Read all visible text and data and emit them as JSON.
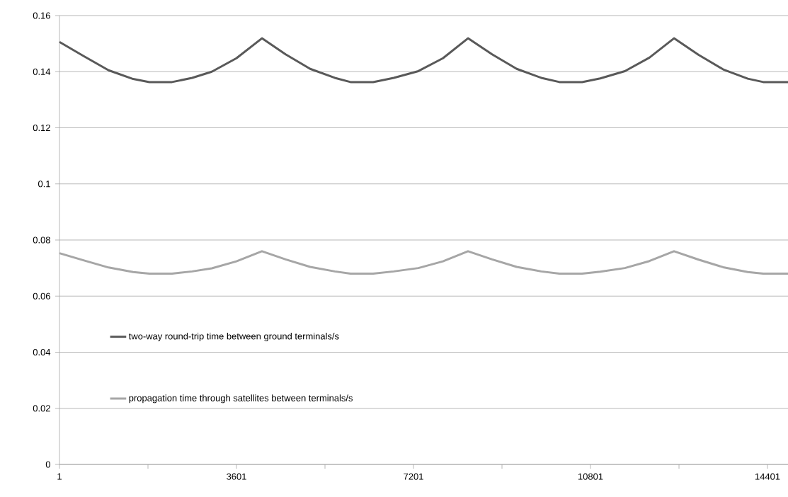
{
  "chart_data": {
    "type": "line",
    "x": [
      1,
      500,
      1000,
      1500,
      1830,
      2290,
      2700,
      3100,
      3600,
      4119,
      4600,
      5100,
      5600,
      5920,
      6380,
      6800,
      7300,
      7800,
      8310,
      8800,
      9300,
      9800,
      10170,
      10630,
      11000,
      11500,
      12000,
      12500,
      13000,
      13500,
      14000,
      14315,
      14818
    ],
    "series": [
      {
        "name": "two-way round-trip time between ground terminals/s",
        "color": "#595959",
        "values": [
          0.1506,
          0.1455,
          0.1405,
          0.1374,
          0.1363,
          0.1363,
          0.1378,
          0.14,
          0.1448,
          0.1519,
          0.1462,
          0.141,
          0.1378,
          0.1363,
          0.1363,
          0.1378,
          0.1402,
          0.1448,
          0.1519,
          0.1462,
          0.141,
          0.1378,
          0.1363,
          0.1363,
          0.1376,
          0.1402,
          0.145,
          0.1519,
          0.146,
          0.1408,
          0.1375,
          0.1363,
          0.1363
        ]
      },
      {
        "name": "propagation time through satellites between terminals/s",
        "color": "#a6a6a6",
        "values": [
          0.0753,
          0.0727,
          0.0702,
          0.0686,
          0.068,
          0.068,
          0.0688,
          0.0699,
          0.0724,
          0.076,
          0.0731,
          0.0704,
          0.0688,
          0.068,
          0.068,
          0.0688,
          0.07,
          0.0724,
          0.076,
          0.0731,
          0.0704,
          0.0688,
          0.068,
          0.068,
          0.0687,
          0.07,
          0.0725,
          0.076,
          0.073,
          0.0703,
          0.0686,
          0.068,
          0.068
        ]
      }
    ],
    "xlim": [
      1,
      14818
    ],
    "xticks": [
      1,
      {
        "value": 1801,
        "label": null
      },
      3601,
      {
        "value": 5401,
        "label": null
      },
      7201,
      {
        "value": 9001,
        "label": null
      },
      10801,
      {
        "value": 12601,
        "label": null
      },
      14401
    ],
    "ylim": [
      0,
      0.16
    ],
    "yticks": [
      0,
      0.02,
      0.04,
      0.06,
      0.08,
      0.1,
      0.12,
      0.14,
      0.16
    ],
    "grid": "y",
    "legend": "bottom left",
    "marker": "none",
    "line_style": "solid"
  }
}
